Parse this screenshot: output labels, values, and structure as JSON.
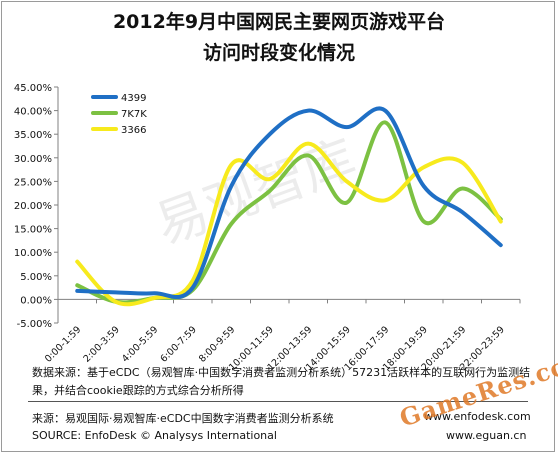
{
  "title_line1": "2012年9月中国网民主要网页游戏平台",
  "title_line2": "访问时段变化情况",
  "chart_data": {
    "type": "line",
    "title": "2012年9月中国网民主要网页游戏平台访问时段变化情况",
    "categories": [
      "0:00-1:59",
      "2:00-3:59",
      "4:00-5:59",
      "6:00-7:59",
      "8:00-9:59",
      "10:00-11:59",
      "12:00-13:59",
      "14:00-15:59",
      "16:00-17:59",
      "18:00-19:59",
      "20:00-21:59",
      "22:00-23:59"
    ],
    "y_tick_labels": [
      "-5.00%",
      "0.00%",
      "5.00%",
      "10.00%",
      "15.00%",
      "20.00%",
      "25.00%",
      "30.00%",
      "35.00%",
      "40.00%",
      "45.00%"
    ],
    "ylim": [
      -5,
      45
    ],
    "grid": false,
    "legend_position": "top-left",
    "series": [
      {
        "name": "4399",
        "color": "#1f6fc5",
        "values": [
          1.8,
          1.5,
          1.3,
          2.5,
          24.0,
          35.0,
          40.0,
          36.5,
          40.0,
          24.0,
          18.5,
          11.5
        ]
      },
      {
        "name": "7K7K",
        "color": "#7cc142",
        "values": [
          3.0,
          -0.5,
          0.3,
          2.0,
          16.0,
          23.0,
          30.5,
          20.5,
          37.5,
          16.5,
          23.5,
          17.0
        ]
      },
      {
        "name": "3366",
        "color": "#f7ea1d",
        "values": [
          8.0,
          -0.5,
          0.3,
          4.0,
          28.5,
          25.5,
          33.0,
          25.0,
          21.0,
          28.0,
          29.0,
          16.5
        ]
      }
    ]
  },
  "note_line1": "数据来源：基于eCDC（易观智库·中国数字消费者监测分析系统）57231活跃样本的互联网行为监测结",
  "note_line2": "果，并结合cookie跟踪的方式综合分析所得",
  "source_cn": "来源：易观国际·易观智库·eCDC中国数字消费者监测分析系统",
  "source_en": "SOURCE:  EnfoDesk © Analysys International",
  "url1": "www.enfodesk.com",
  "url2": "www.eguan.cn",
  "watermark_gameres": "GameRes.com",
  "watermark_bg": "易观智库"
}
